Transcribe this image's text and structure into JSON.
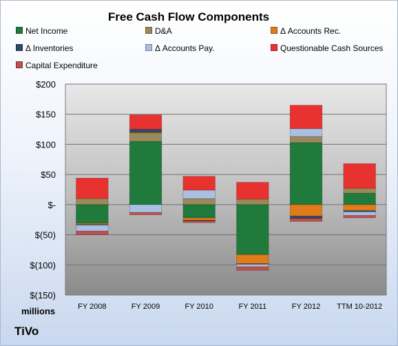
{
  "chart_data": {
    "type": "bar",
    "stacked": true,
    "title": "Free Cash Flow Components",
    "unit_label": "millions",
    "company": "TiVo",
    "categories": [
      "FY 2008",
      "FY 2009",
      "FY 2010",
      "FY 2011",
      "FY 2012",
      "TTM 10-2012"
    ],
    "ylim": [
      -150,
      200
    ],
    "yticks": [
      200,
      150,
      100,
      50,
      0,
      -50,
      -100,
      -150
    ],
    "ytick_labels": [
      "$200",
      "$150",
      "$100",
      "$50",
      "$-",
      "$(50)",
      "$(100)",
      "$(150)"
    ],
    "grid": true,
    "legend_position": "top",
    "series": [
      {
        "name": "Net Income",
        "color": "#1f7a3c",
        "values": [
          -31,
          105,
          -22,
          -83,
          103,
          19
        ]
      },
      {
        "name": "D&A",
        "color": "#9a8a5a",
        "values": [
          10,
          14,
          10,
          9,
          10,
          8
        ]
      },
      {
        "name": "Δ Accounts Rec.",
        "color": "#e07b1a",
        "values": [
          -2,
          1,
          -4,
          -15,
          -19,
          -10
        ]
      },
      {
        "name": "Δ Inventories",
        "color": "#2e4a6b",
        "values": [
          -1,
          5,
          -1,
          -1,
          -4,
          -2
        ]
      },
      {
        "name": "Δ Accounts Pay.",
        "color": "#a9c0e3",
        "values": [
          -10,
          -13,
          14,
          -4,
          13,
          -6
        ]
      },
      {
        "name": "Questionable Cash Sources",
        "color": "#e8322f",
        "values": [
          34,
          24,
          23,
          28,
          39,
          41
        ]
      },
      {
        "name": "Capital Expenditure",
        "color": "#c0504d",
        "values": [
          -6,
          -4,
          -3,
          -6,
          -5,
          -4
        ]
      }
    ]
  }
}
